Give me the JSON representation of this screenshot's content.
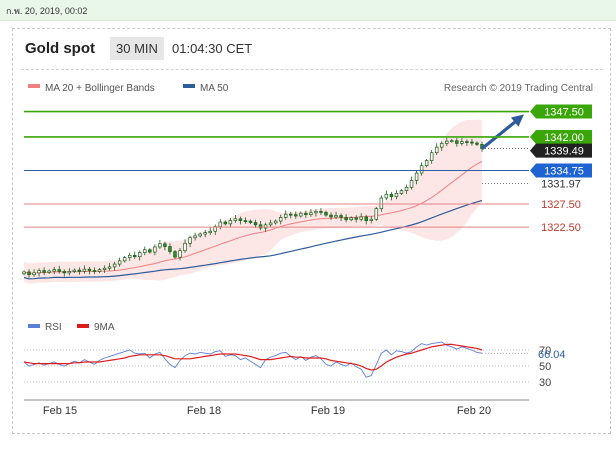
{
  "topbar": {
    "datetime": "ก.พ. 20, 2019, 00:02"
  },
  "header": {
    "instrument": "Gold spot",
    "timeframe": "30 MIN",
    "time": "01:04:30 CET"
  },
  "legend": {
    "ma20": "MA 20 + Bollinger Bands",
    "ma50": "MA 50",
    "credit": "Research © 2019 Trading Central",
    "rsi": "RSI",
    "ma9": "9MA"
  },
  "colors": {
    "green": "#3aa60a",
    "blue_line": "#2a5fa8",
    "red_line": "#e38383",
    "ma20": "#f08080",
    "ma50": "#2e5c9a",
    "bb_fill": "#fde3e3",
    "candle": "#2b8a2b",
    "arrow": "#2e5c9a",
    "rsi": "#5b7fd6",
    "ma9": "#e01b1b"
  },
  "chart_data": [
    {
      "type": "candlestick",
      "title": "Gold spot",
      "x_ticks": [
        "Feb 15",
        "Feb 18",
        "Feb 19",
        "Feb 20"
      ],
      "ylim": [
        1305,
        1350
      ],
      "levels": [
        {
          "label": "1347.50",
          "value": 1347.5,
          "kind": "resistance",
          "color": "#3aa60a"
        },
        {
          "label": "1342.00",
          "value": 1342.0,
          "kind": "resistance",
          "color": "#3aa60a"
        },
        {
          "label": "1339.49",
          "value": 1339.49,
          "kind": "last-price",
          "color": "#222222"
        },
        {
          "label": "1334.75",
          "value": 1334.75,
          "kind": "pivot",
          "color": "#1f62d1"
        },
        {
          "label": "1331.97",
          "value": 1331.97,
          "kind": "ma-value",
          "color": "#ffffff"
        },
        {
          "label": "1327.50",
          "value": 1327.5,
          "kind": "support",
          "color": "#ffffff"
        },
        {
          "label": "1322.50",
          "value": 1322.5,
          "kind": "support",
          "color": "#ffffff"
        }
      ],
      "series": [
        {
          "name": "Price",
          "close": [
            1312.8,
            1312.2,
            1312.6,
            1313.1,
            1312.7,
            1313.0,
            1313.3,
            1312.9,
            1312.6,
            1312.9,
            1313.2,
            1312.9,
            1313.4,
            1313.1,
            1312.9,
            1313.3,
            1313.6,
            1313.9,
            1314.5,
            1315.2,
            1315.9,
            1316.4,
            1316.1,
            1317.0,
            1317.6,
            1317.1,
            1318.2,
            1318.9,
            1318.3,
            1317.2,
            1316.0,
            1317.4,
            1319.0,
            1320.2,
            1320.6,
            1321.0,
            1321.3,
            1321.6,
            1322.6,
            1323.6,
            1323.2,
            1323.9,
            1324.3,
            1323.9,
            1323.8,
            1323.5,
            1323.0,
            1322.3,
            1323.0,
            1323.4,
            1323.8,
            1324.6,
            1325.3,
            1325.2,
            1324.9,
            1325.5,
            1325.2,
            1325.6,
            1325.9,
            1325.7,
            1325.1,
            1324.7,
            1325.0,
            1324.6,
            1324.1,
            1324.5,
            1324.2,
            1324.7,
            1323.9,
            1324.2,
            1326.5,
            1328.8,
            1329.6,
            1329.1,
            1329.8,
            1330.4,
            1331.1,
            1332.6,
            1334.2,
            1335.8,
            1336.9,
            1338.6,
            1339.8,
            1340.6,
            1341.1,
            1341.2,
            1340.6,
            1341.0,
            1340.9,
            1340.7,
            1340.4,
            1339.49
          ],
          "volatility": 0.7
        },
        {
          "name": "MA 20"
        },
        {
          "name": "MA 50"
        }
      ]
    },
    {
      "type": "line",
      "title": "RSI",
      "y_ticks": [
        70,
        50,
        30
      ],
      "last_value_label": "66.04",
      "last_value": 66.04,
      "ylim": [
        15,
        85
      ],
      "series": [
        {
          "name": "RSI",
          "values": [
            55,
            50,
            52,
            54,
            51,
            53,
            55,
            52,
            50,
            53,
            56,
            54,
            58,
            55,
            52,
            57,
            60,
            62,
            64,
            66,
            68,
            70,
            66,
            65,
            66,
            60,
            65,
            67,
            59,
            52,
            48,
            57,
            63,
            66,
            65,
            67,
            66,
            65,
            68,
            69,
            62,
            64,
            63,
            58,
            60,
            56,
            52,
            48,
            58,
            61,
            63,
            66,
            67,
            62,
            58,
            62,
            57,
            61,
            63,
            59,
            52,
            50,
            55,
            52,
            50,
            54,
            49,
            46,
            36,
            38,
            52,
            66,
            70,
            64,
            69,
            68,
            66,
            68,
            74,
            78,
            76,
            78,
            79,
            80,
            76,
            74,
            71,
            74,
            72,
            70,
            67,
            66.04
          ]
        },
        {
          "name": "9MA",
          "values": [
            55,
            54,
            53,
            53,
            53,
            53,
            53,
            53,
            53,
            53,
            54,
            54,
            55,
            55,
            55,
            55,
            56,
            57,
            58,
            59,
            60,
            62,
            63,
            64,
            64,
            64,
            64,
            64,
            63,
            61,
            59,
            59,
            59,
            59,
            60,
            61,
            62,
            63,
            64,
            65,
            65,
            65,
            65,
            64,
            63,
            62,
            60,
            58,
            58,
            58,
            59,
            60,
            61,
            62,
            61,
            61,
            60,
            60,
            60,
            60,
            59,
            57,
            56,
            55,
            54,
            53,
            52,
            50,
            47,
            45,
            46,
            50,
            55,
            58,
            61,
            63,
            65,
            66,
            68,
            70,
            72,
            74,
            75,
            76,
            77,
            77,
            76,
            75,
            74,
            73,
            72,
            70
          ]
        }
      ]
    }
  ]
}
